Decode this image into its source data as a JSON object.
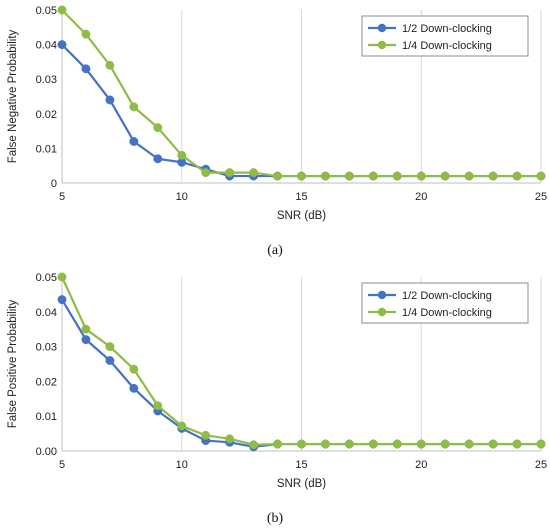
{
  "chart_data": [
    {
      "type": "line",
      "caption": "(a)",
      "xlabel": "SNR (dB)",
      "ylabel": "False Negative Probability",
      "xlim": [
        5,
        25
      ],
      "ylim": [
        0,
        0.05
      ],
      "xticks": [
        "5",
        "10",
        "15",
        "20",
        "25"
      ],
      "yticks": [
        "0",
        "0.01",
        "0.02",
        "0.03",
        "0.04",
        "0.05"
      ],
      "grid": "vertical",
      "legend": "top-right",
      "x": [
        5,
        6,
        7,
        8,
        9,
        10,
        11,
        12,
        13,
        14,
        15,
        16,
        17,
        18,
        19,
        20,
        21,
        22,
        23,
        24,
        25
      ],
      "series": [
        {
          "name": "1/2 Down-clocking",
          "color": "#4472c4",
          "values": [
            0.04,
            0.033,
            0.024,
            0.012,
            0.007,
            0.006,
            0.004,
            0.002,
            0.002,
            0.002,
            0.002,
            0.002,
            0.002,
            0.002,
            0.002,
            0.002,
            0.002,
            0.002,
            0.002,
            0.002,
            0.002
          ]
        },
        {
          "name": "1/4 Down-clocking",
          "color": "#8fbc45",
          "values": [
            0.05,
            0.043,
            0.034,
            0.022,
            0.016,
            0.008,
            0.003,
            0.003,
            0.003,
            0.002,
            0.002,
            0.002,
            0.002,
            0.002,
            0.002,
            0.002,
            0.002,
            0.002,
            0.002,
            0.002,
            0.002
          ]
        }
      ]
    },
    {
      "type": "line",
      "caption": "(b)",
      "xlabel": "SNR (dB)",
      "ylabel": "False Positive Probability",
      "xlim": [
        5,
        25
      ],
      "ylim": [
        0,
        0.05
      ],
      "xticks": [
        "5",
        "10",
        "15",
        "20",
        "25"
      ],
      "yticks": [
        "0.00",
        "0.01",
        "0.02",
        "0.03",
        "0.04",
        "0.05"
      ],
      "grid": "vertical",
      "legend": "top-right",
      "x": [
        5,
        6,
        7,
        8,
        9,
        10,
        11,
        12,
        13,
        14,
        15,
        16,
        17,
        18,
        19,
        20,
        21,
        22,
        23,
        24,
        25
      ],
      "series": [
        {
          "name": "1/2 Down-clocking",
          "color": "#4472c4",
          "values": [
            0.0435,
            0.032,
            0.026,
            0.018,
            0.0115,
            0.0065,
            0.003,
            0.0025,
            0.0012,
            0.002,
            0.002,
            0.002,
            0.002,
            0.002,
            0.002,
            0.002,
            0.002,
            0.002,
            0.002,
            0.002,
            0.002
          ]
        },
        {
          "name": "1/4 Down-clocking",
          "color": "#8fbc45",
          "values": [
            0.05,
            0.035,
            0.03,
            0.0235,
            0.013,
            0.0072,
            0.0045,
            0.0035,
            0.0018,
            0.002,
            0.002,
            0.002,
            0.002,
            0.002,
            0.002,
            0.002,
            0.002,
            0.002,
            0.002,
            0.002,
            0.002
          ]
        }
      ]
    }
  ]
}
